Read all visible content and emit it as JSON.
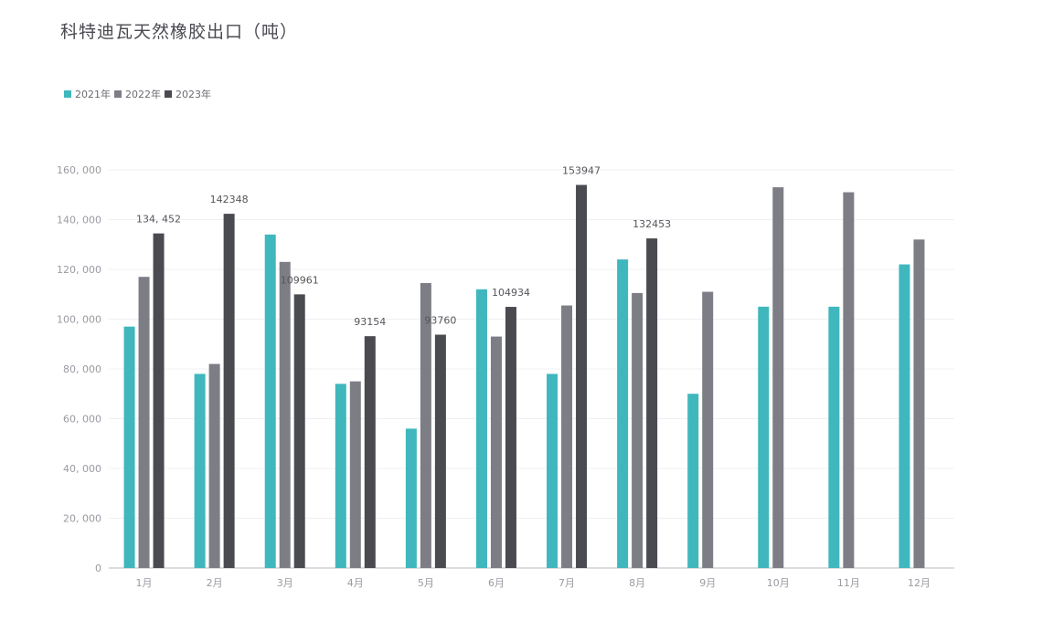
{
  "header": {
    "title": "科特迪瓦天然橡胶出口（吨）"
  },
  "colors": {
    "series": [
      "#3fb7bd",
      "#7d7d86",
      "#4a4a51"
    ],
    "grid": "#f0f0f2",
    "axis": "#b8b8c0"
  },
  "chart_data": {
    "type": "bar",
    "title": "科特迪瓦天然橡胶出口（吨）",
    "categories": [
      "1月",
      "2月",
      "3月",
      "4月",
      "5月",
      "6月",
      "7月",
      "8月",
      "9月",
      "10月",
      "11月",
      "12月"
    ],
    "series": [
      {
        "name": "2021年",
        "values": [
          97000,
          78000,
          134000,
          74000,
          56000,
          112000,
          78000,
          124000,
          70000,
          105000,
          105000,
          122000
        ]
      },
      {
        "name": "2022年",
        "values": [
          117000,
          82000,
          123000,
          75000,
          114500,
          93000,
          105500,
          110500,
          111000,
          153000,
          151000,
          132000
        ]
      },
      {
        "name": "2023年",
        "values": [
          134452,
          142348,
          109961,
          93154,
          93760,
          104934,
          153947,
          132453,
          null,
          null,
          null,
          null
        ]
      }
    ],
    "data_labels": {
      "series": "2023年",
      "labels": [
        "134, 452",
        "142348",
        "109961",
        "93154",
        "93760",
        "104934",
        "153947",
        "132453",
        "",
        "",
        "",
        ""
      ]
    },
    "ylim": [
      0,
      160000
    ],
    "yticks": [
      0,
      20000,
      40000,
      60000,
      80000,
      100000,
      120000,
      140000,
      160000
    ],
    "ytick_labels": [
      "0",
      "20, 000",
      "40, 000",
      "60, 000",
      "80, 000",
      "100, 000",
      "120, 000",
      "140, 000",
      "160, 000"
    ],
    "grid": true,
    "legend": "top-left"
  }
}
